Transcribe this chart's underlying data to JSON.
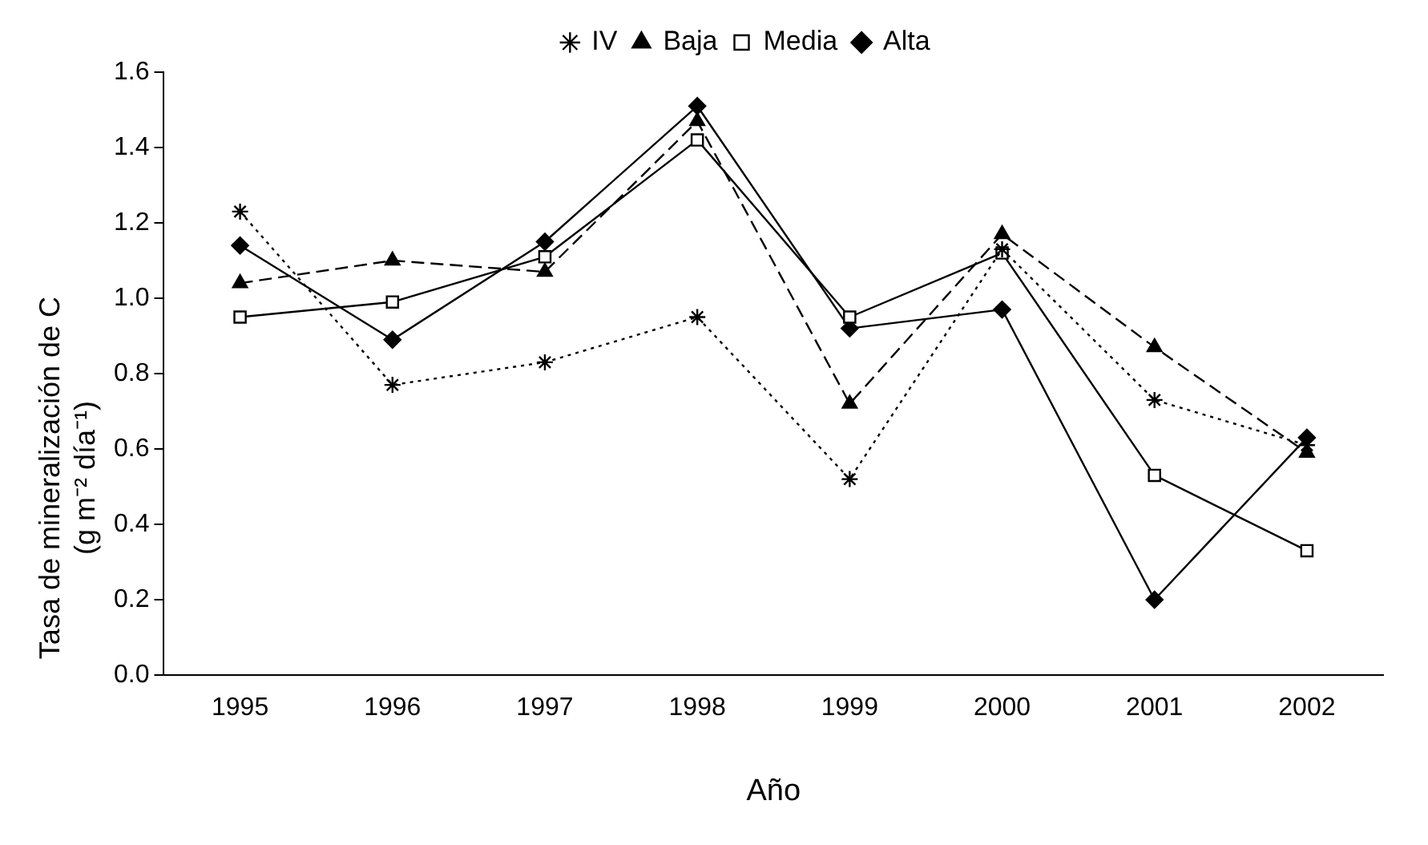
{
  "chart_data": {
    "type": "line",
    "xlabel": "Año",
    "ylabel": "Tasa de mineralización de C (g m⁻² día⁻¹)",
    "categories": [
      "1995",
      "1996",
      "1997",
      "1998",
      "1999",
      "2000",
      "2001",
      "2002"
    ],
    "series": [
      {
        "name": "Alta",
        "color": "#000000",
        "marker": "diamond",
        "line_style": "solid",
        "values": [
          1.14,
          0.89,
          1.15,
          1.51,
          0.92,
          0.97,
          0.2,
          0.63
        ]
      },
      {
        "name": "Media",
        "color": "#000000",
        "marker": "square",
        "line_style": "solid",
        "values": [
          0.95,
          0.99,
          1.11,
          1.42,
          0.95,
          1.12,
          0.53,
          0.33
        ]
      },
      {
        "name": "Baja",
        "color": "#000000",
        "marker": "triangle",
        "line_style": "dashed",
        "values": [
          1.04,
          1.1,
          1.07,
          1.47,
          0.72,
          1.17,
          0.87,
          0.59
        ]
      },
      {
        "name": "IV",
        "color": "#000000",
        "marker": "cross",
        "line_style": "dotted",
        "values": [
          1.23,
          0.77,
          0.83,
          0.95,
          0.52,
          1.13,
          0.73,
          0.61
        ]
      }
    ],
    "ylim": [
      0,
      1.6
    ],
    "yticks": [
      {
        "value": 0,
        "label": "0.0"
      },
      0.2,
      0.4,
      0.6,
      0.8,
      {
        "value": 1,
        "label": "1.0"
      },
      1.2,
      1.4,
      1.6
    ],
    "grid": false,
    "legend": "top"
  }
}
